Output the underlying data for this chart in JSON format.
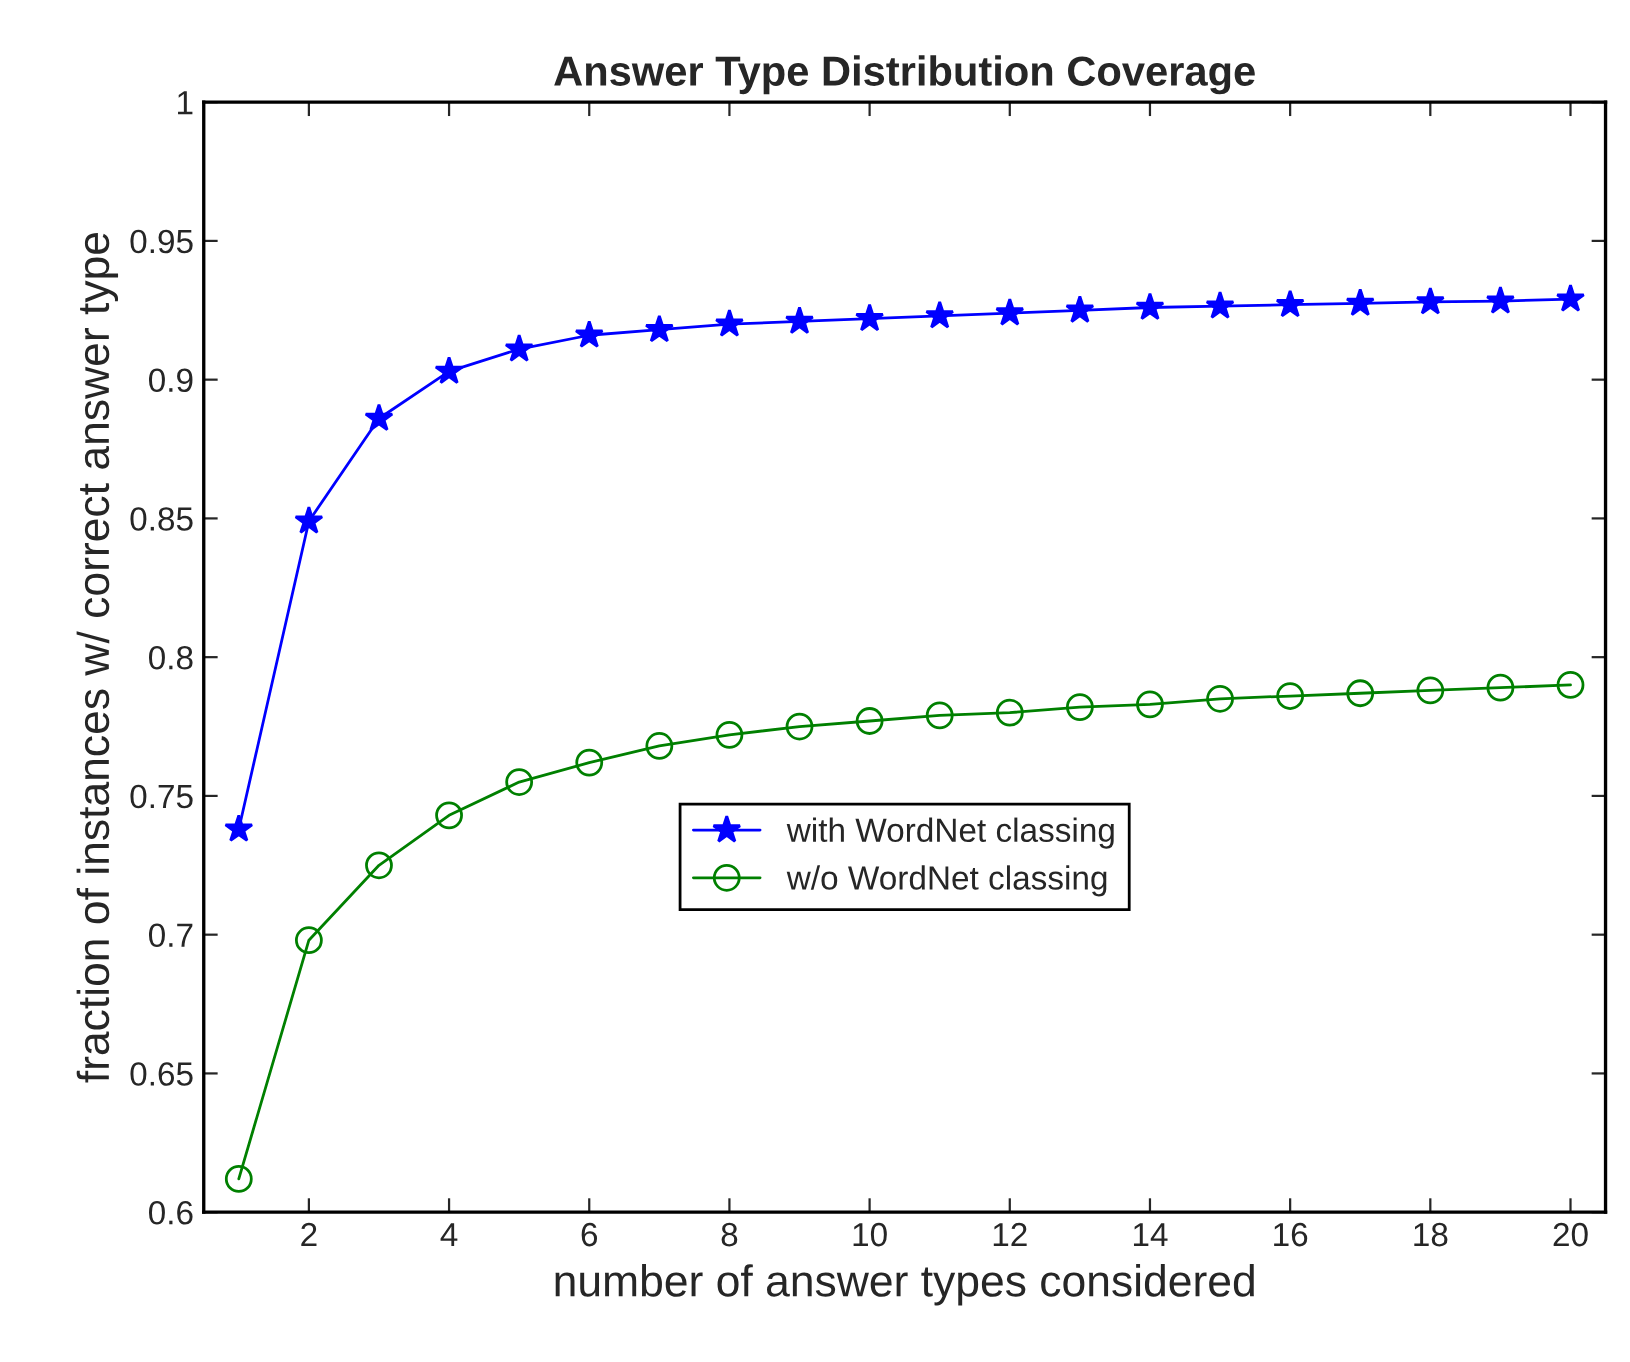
{
  "chart_data": {
    "type": "line",
    "title": "Answer Type Distribution Coverage",
    "xlabel": "number of answer types considered",
    "ylabel": "fraction of instances w/ correct answer type",
    "x": [
      1,
      2,
      3,
      4,
      5,
      6,
      7,
      8,
      9,
      10,
      11,
      12,
      13,
      14,
      15,
      16,
      17,
      18,
      19,
      20
    ],
    "series": [
      {
        "name": "with WordNet classing",
        "color": "#0000ff",
        "marker": "star",
        "values": [
          0.738,
          0.849,
          0.886,
          0.903,
          0.911,
          0.916,
          0.918,
          0.92,
          0.921,
          0.922,
          0.923,
          0.924,
          0.925,
          0.926,
          0.9265,
          0.927,
          0.9275,
          0.928,
          0.9283,
          0.929
        ]
      },
      {
        "name": "w/o WordNet classing",
        "color": "#008000",
        "marker": "circle",
        "values": [
          0.612,
          0.698,
          0.725,
          0.743,
          0.755,
          0.762,
          0.768,
          0.772,
          0.775,
          0.777,
          0.779,
          0.78,
          0.782,
          0.783,
          0.785,
          0.786,
          0.787,
          0.788,
          0.789,
          0.79
        ]
      }
    ],
    "xlim": [
      0.5,
      20.5
    ],
    "xticks": [
      2,
      4,
      6,
      8,
      10,
      12,
      14,
      16,
      18,
      20
    ],
    "ylim": [
      0.6,
      1
    ],
    "yticks": [
      0.6,
      0.65,
      0.7,
      0.75,
      0.8,
      0.85,
      0.9,
      0.95,
      1
    ],
    "grid": false,
    "legend": "center",
    "line_style": "solid"
  }
}
